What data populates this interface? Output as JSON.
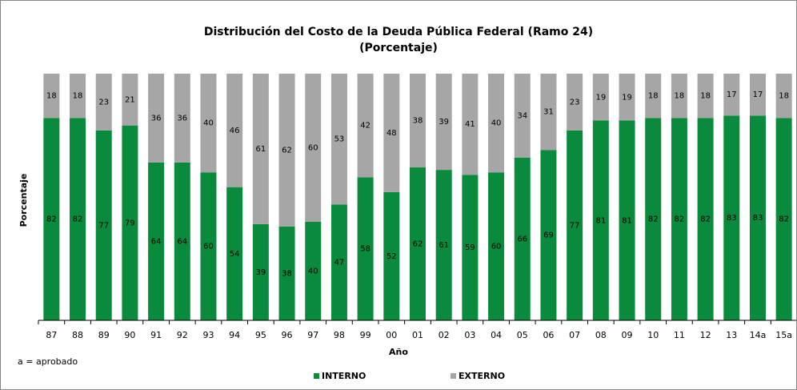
{
  "chart_data": {
    "type": "stacked_bar",
    "title": "Distribución del Costo de la Deuda Pública Federal (Ramo 24)",
    "subtitle": "(Porcentaje)",
    "x_label": "Año",
    "y_label": "Porcentaje",
    "annotation": "a = aprobado",
    "categories": [
      "87",
      "88",
      "89",
      "90",
      "91",
      "92",
      "93",
      "94",
      "95",
      "96",
      "97",
      "98",
      "99",
      "00",
      "01",
      "02",
      "03",
      "04",
      "05",
      "06",
      "07",
      "08",
      "09",
      "10",
      "11",
      "12",
      "13",
      "14a",
      "15a"
    ],
    "series": [
      {
        "name": "INTERNO",
        "color": "#0a8a3c",
        "values": [
          82,
          82,
          77,
          79,
          64,
          64,
          60,
          54,
          39,
          38,
          40,
          47,
          58,
          52,
          62,
          61,
          59,
          60,
          66,
          69,
          77,
          81,
          81,
          82,
          82,
          82,
          83,
          83,
          82
        ]
      },
      {
        "name": "EXTERNO",
        "color": "#a6a6a6",
        "values": [
          18,
          18,
          23,
          21,
          36,
          36,
          40,
          46,
          61,
          62,
          60,
          53,
          42,
          48,
          38,
          39,
          41,
          40,
          34,
          31,
          23,
          19,
          19,
          18,
          18,
          18,
          17,
          17,
          18
        ]
      }
    ],
    "ylim": [
      0,
      100
    ]
  }
}
